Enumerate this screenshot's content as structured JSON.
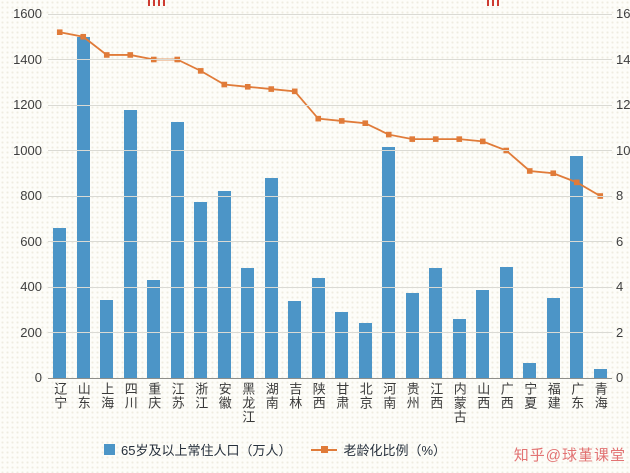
{
  "chart_data": {
    "type": "bar",
    "combo": "bar+line",
    "categories": [
      "辽宁",
      "山东",
      "上海",
      "四川",
      "重庆",
      "江苏",
      "浙江",
      "安徽",
      "黑龙江",
      "湖南",
      "吉林",
      "陕西",
      "甘肃",
      "北京",
      "河南",
      "贵州",
      "江西",
      "内蒙古",
      "山西",
      "广西",
      "宁夏",
      "福建",
      "广东",
      "青海"
    ],
    "series": [
      {
        "name": "65岁及以上常住人口（万人）",
        "chart_type": "bar",
        "axis": "left",
        "color": "#4c95c7",
        "values": [
          660,
          1500,
          345,
          1180,
          430,
          1125,
          775,
          820,
          485,
          880,
          340,
          440,
          290,
          240,
          1015,
          375,
          485,
          260,
          385,
          490,
          65,
          350,
          975,
          40
        ]
      },
      {
        "name": "老龄化比例（%）",
        "chart_type": "line",
        "axis": "right",
        "color": "#e07b39",
        "marker": "square",
        "values": [
          15.2,
          15.0,
          14.2,
          14.2,
          14.0,
          14.0,
          13.5,
          12.9,
          12.8,
          12.7,
          12.6,
          11.4,
          11.3,
          11.2,
          10.7,
          10.5,
          10.5,
          10.5,
          10.4,
          10.0,
          9.1,
          9.0,
          8.6,
          8.0
        ]
      }
    ],
    "left_axis": {
      "min": 0,
      "max": 1600,
      "step": 200
    },
    "right_axis": {
      "min": 0,
      "max": 16,
      "step": 2
    },
    "grid": true,
    "legend_position": "bottom",
    "title": ""
  },
  "legend": {
    "bar_label": "65岁及以上常住人口（万人）",
    "line_label": "老龄化比例（%）"
  },
  "watermark": {
    "text": "知乎@球堇课堂",
    "color": "#e27373"
  }
}
